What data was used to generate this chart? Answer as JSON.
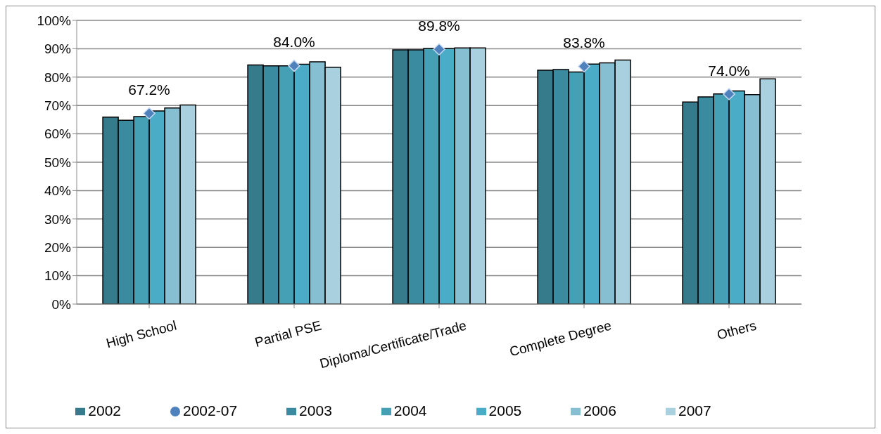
{
  "chart_data": {
    "type": "bar",
    "categories": [
      "High School",
      "Partial PSE",
      "Diploma/Certificate/Trade",
      "Complete Degree",
      "Others"
    ],
    "series": [
      {
        "name": "2002",
        "color": "#357b8c",
        "values": [
          65.9,
          84.3,
          89.6,
          82.4,
          71.2
        ]
      },
      {
        "name": "2003",
        "color": "#3a8aa0",
        "values": [
          64.8,
          84.0,
          89.6,
          82.7,
          73.0
        ]
      },
      {
        "name": "2004",
        "color": "#459fb5",
        "values": [
          66.1,
          84.0,
          90.1,
          81.8,
          74.1
        ]
      },
      {
        "name": "2005",
        "color": "#4aacc6",
        "values": [
          68.1,
          84.5,
          90.1,
          84.6,
          75.1
        ]
      },
      {
        "name": "2006",
        "color": "#86bfd1",
        "values": [
          69.1,
          85.4,
          90.3,
          85.0,
          73.8
        ]
      },
      {
        "name": "2007",
        "color": "#a9d0de",
        "values": [
          70.2,
          83.5,
          90.3,
          86.0,
          79.4
        ]
      },
      {
        "name": "2002-07",
        "type": "scatter",
        "color": "#4f81bd",
        "x": [
          "High School",
          "Partial PSE",
          "Diploma/Certificate/Trade",
          "Complete Degree",
          "Others"
        ],
        "values": [
          67.2,
          84.0,
          89.8,
          83.8,
          74.0
        ],
        "value_labels": [
          "67.2%",
          "84.0%",
          "89.8%",
          "83.8%",
          "74.0%"
        ]
      }
    ],
    "ylim": [
      0,
      100
    ],
    "yticks": [
      {
        "value": 0,
        "label": "0%"
      },
      {
        "value": 10,
        "label": "10%"
      },
      {
        "value": 20,
        "label": "20%"
      },
      {
        "value": 30,
        "label": "30%"
      },
      {
        "value": 40,
        "label": "40%"
      },
      {
        "value": 50,
        "label": "50%"
      },
      {
        "value": 60,
        "label": "60%"
      },
      {
        "value": 70,
        "label": "70%"
      },
      {
        "value": 80,
        "label": "80%"
      },
      {
        "value": 90,
        "label": "90%"
      },
      {
        "value": 100,
        "label": "100%"
      }
    ],
    "grid": "y",
    "legend": "bottom",
    "marker": "diamond"
  }
}
